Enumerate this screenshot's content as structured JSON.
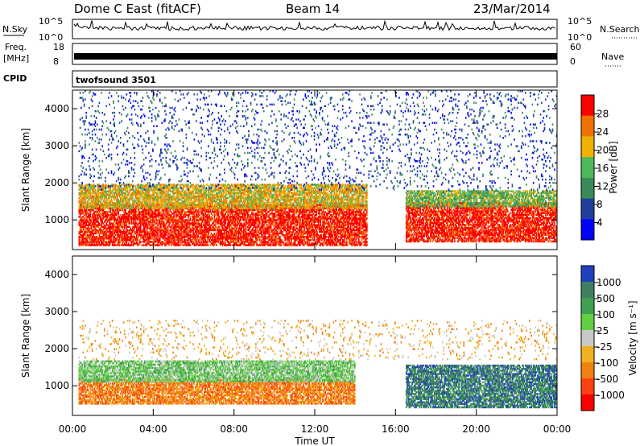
{
  "header": {
    "station": "Dome C East (fitACF)",
    "beam": "Beam 14",
    "date": "23/Mar/2014"
  },
  "panels": {
    "nsky_label": "N.Sky",
    "nsky_ticks": [
      "10^5",
      "10^0"
    ],
    "nsearch_label": "N.Search",
    "nsearch_ticks": [
      "10^5",
      "10^0"
    ],
    "freq_label_1": "Freq.",
    "freq_label_2": "[MHz]",
    "freq_ticks": [
      "18",
      "8"
    ],
    "nave_label": "Nave",
    "nave_ticks": [
      "60",
      "0"
    ],
    "cpid_label": "CPID",
    "cpid_value": "twofsound 3501"
  },
  "chart_data": [
    {
      "type": "heatmap",
      "name": "power",
      "ylabel": "Slant Range [km]",
      "yticks": [
        "1000",
        "2000",
        "3000",
        "4000"
      ],
      "ylim": [
        200,
        4500
      ],
      "xlim_hours": [
        0,
        24
      ],
      "colorbar_label": "Power [dB]",
      "colorbar_ticks": [
        "28",
        "24",
        "20",
        "16",
        "12",
        "8",
        "4"
      ],
      "colors": [
        "#0000ff",
        "#1f3f9f",
        "#3a8a5a",
        "#4fb85a",
        "#f0b000",
        "#f07000",
        "#ff0000"
      ],
      "bands": [
        {
          "x0": 0.3,
          "x1": 14.6,
          "r0": 300,
          "r1": 1450,
          "level": 6
        },
        {
          "x0": 0.3,
          "x1": 14.6,
          "r0": 1300,
          "r1": 2000,
          "level": 4
        },
        {
          "x0": 16.5,
          "x1": 24.0,
          "r0": 400,
          "r1": 1500,
          "level": 6
        },
        {
          "x0": 16.5,
          "x1": 24.0,
          "r0": 1350,
          "r1": 1800,
          "level": 3
        },
        {
          "x0": 0.3,
          "x1": 24.0,
          "r0": 1800,
          "r1": 4500,
          "level": 1
        }
      ]
    },
    {
      "type": "heatmap",
      "name": "velocity",
      "ylabel": "Slant Range [km]",
      "yticks": [
        "1000",
        "2000",
        "3000",
        "4000"
      ],
      "ylim": [
        200,
        4500
      ],
      "xlim_hours": [
        0,
        24
      ],
      "colorbar_label": "Velocity [m s⁻¹]",
      "colorbar_ticks": [
        "1000",
        "500",
        "100",
        "25",
        "-25",
        "-100",
        "-500",
        "-1000"
      ],
      "colors": [
        "#2040c0",
        "#3f7f5f",
        "#3fa04f",
        "#60d040",
        "#c8c8c8",
        "#f0b020",
        "#f08010",
        "#ff4010",
        "#ff0000"
      ],
      "bands": [
        {
          "x0": 0.3,
          "x1": 14.0,
          "r0": 500,
          "r1": 1200,
          "level": 6
        },
        {
          "x0": 0.3,
          "x1": 14.0,
          "r0": 1100,
          "r1": 1700,
          "level": 3
        },
        {
          "x0": 16.5,
          "x1": 24.0,
          "r0": 400,
          "r1": 1600,
          "level": 1
        },
        {
          "x0": 0.3,
          "x1": 24.0,
          "r0": 1700,
          "r1": 2800,
          "level": 5
        }
      ]
    }
  ],
  "xaxis": {
    "label": "Time UT",
    "ticks": [
      "00:00",
      "04:00",
      "08:00",
      "12:00",
      "16:00",
      "20:00",
      "00:00"
    ]
  }
}
